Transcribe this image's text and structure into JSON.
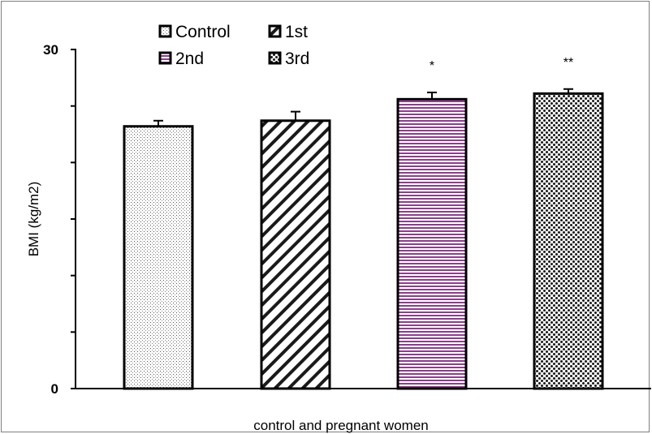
{
  "chart_data": {
    "type": "bar",
    "categories": [
      "Control",
      "1st",
      "2nd",
      "3rd"
    ],
    "values": [
      23.2,
      23.7,
      25.6,
      26.1
    ],
    "errors": [
      0.5,
      0.8,
      0.6,
      0.4
    ],
    "annotations": [
      "",
      "",
      "*",
      "**"
    ],
    "xlabel": "control and pregnant women",
    "ylabel": "BMI (kg/m2)",
    "ylim": [
      0,
      30
    ],
    "yticks": [
      0,
      30
    ],
    "legend": {
      "placement": "top",
      "entries": [
        "Control",
        "1st",
        "2nd",
        "3rd"
      ]
    },
    "patterns": [
      "dots",
      "diagonal-stripes",
      "horizontal-stripes",
      "checker"
    ],
    "colors": {
      "stripe_purple": "#8b3f8b",
      "outline": "#000000"
    },
    "grid": false
  }
}
